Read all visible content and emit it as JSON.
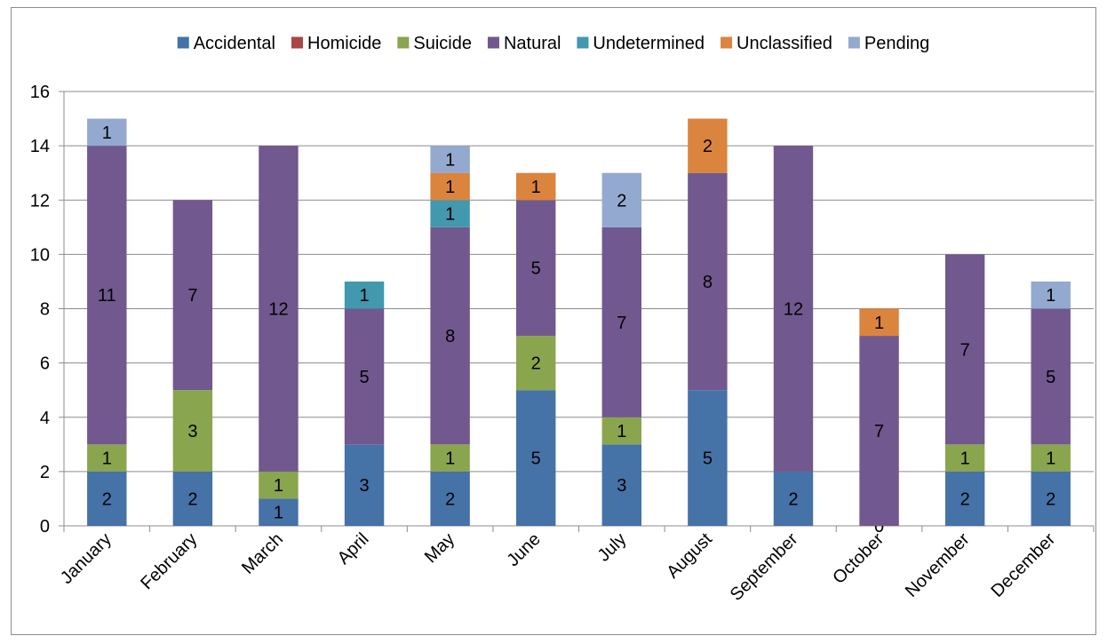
{
  "chart_data": {
    "type": "bar",
    "stacked": true,
    "title": "",
    "xlabel": "",
    "ylabel": "",
    "ylim": [
      0,
      16
    ],
    "yticks": [
      0,
      2,
      4,
      6,
      8,
      10,
      12,
      14,
      16
    ],
    "grid": true,
    "legend_position": "top",
    "categories": [
      "January",
      "February",
      "March",
      "April",
      "May",
      "June",
      "July",
      "August",
      "September",
      "October",
      "November",
      "December"
    ],
    "series": [
      {
        "name": "Accidental",
        "color": "#4572a7",
        "values": [
          2,
          2,
          1,
          3,
          2,
          5,
          3,
          5,
          2,
          0,
          2,
          2
        ],
        "labels": [
          "2",
          "2",
          "1",
          "3",
          "2",
          "5",
          "3",
          "5",
          "2",
          "0",
          "2",
          "2"
        ]
      },
      {
        "name": "Homicide",
        "color": "#aa4643",
        "values": [
          0,
          0,
          0,
          0,
          0,
          0,
          0,
          0,
          0,
          0,
          0,
          0
        ],
        "labels": [
          "",
          "",
          "",
          "",
          "",
          "",
          "",
          "",
          "",
          "",
          "",
          ""
        ]
      },
      {
        "name": "Suicide",
        "color": "#89a54e",
        "values": [
          1,
          3,
          1,
          0,
          1,
          2,
          1,
          0,
          0,
          0,
          1,
          1
        ],
        "labels": [
          "1",
          "3",
          "1",
          "",
          "1",
          "2",
          "1",
          "",
          "",
          "",
          "1",
          "1"
        ]
      },
      {
        "name": "Natural",
        "color": "#71588f",
        "values": [
          11,
          7,
          12,
          5,
          8,
          5,
          7,
          8,
          12,
          7,
          7,
          5
        ],
        "labels": [
          "11",
          "7",
          "12",
          "5",
          "8",
          "5",
          "7",
          "8",
          "12",
          "7",
          "7",
          "5"
        ]
      },
      {
        "name": "Undetermined",
        "color": "#4198af",
        "values": [
          0,
          0,
          0,
          1,
          1,
          0,
          0,
          0,
          0,
          0,
          0,
          0
        ],
        "labels": [
          "",
          "",
          "",
          "1",
          "1",
          "",
          "",
          "",
          "",
          "",
          "",
          ""
        ]
      },
      {
        "name": "Unclassified",
        "color": "#db843d",
        "values": [
          0,
          0,
          0,
          0,
          1,
          1,
          0,
          2,
          0,
          1,
          0,
          0
        ],
        "labels": [
          "",
          "",
          "",
          "",
          "1",
          "1",
          "",
          "2",
          "",
          "1",
          "",
          ""
        ]
      },
      {
        "name": "Pending",
        "color": "#93a9cf",
        "values": [
          1,
          0,
          0,
          0,
          1,
          0,
          2,
          0,
          0,
          0,
          0,
          1
        ],
        "labels": [
          "1",
          "",
          "",
          "",
          "1",
          "",
          "2",
          "",
          "",
          "",
          "",
          "1"
        ]
      }
    ]
  }
}
